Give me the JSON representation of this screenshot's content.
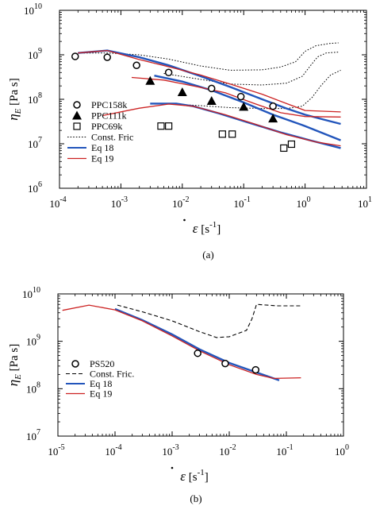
{
  "chart_data": [
    {
      "type": "line",
      "panel_label": "(a)",
      "xscale": "log",
      "yscale": "log",
      "xlim": [
        0.0001,
        10
      ],
      "ylim": [
        1000000,
        10000000000
      ],
      "xticks": [
        0.0001,
        0.001,
        0.01,
        0.1,
        1,
        10
      ],
      "yticks": [
        1000000,
        10000000,
        100000000,
        1000000000,
        10000000000
      ],
      "x_tick_labels": [
        {
          "base": "10",
          "exp": "-4"
        },
        {
          "base": "10",
          "exp": "-3"
        },
        {
          "base": "10",
          "exp": "-2"
        },
        {
          "base": "10",
          "exp": "-1"
        },
        {
          "base": "10",
          "exp": "0"
        },
        {
          "base": "10",
          "exp": "1"
        }
      ],
      "y_tick_labels": [
        {
          "base": "10",
          "exp": "6"
        },
        {
          "base": "10",
          "exp": "7"
        },
        {
          "base": "10",
          "exp": "8"
        },
        {
          "base": "10",
          "exp": "9"
        },
        {
          "base": "10",
          "exp": "10"
        }
      ],
      "xlabel": {
        "symbol": "ε",
        "text": " [s",
        "exp": "-1",
        "tail": "]"
      },
      "ylabel": {
        "symbol": "η",
        "sub": "E",
        "text": " [Pa s]"
      },
      "legend_position": "bottom-left",
      "legend": [
        {
          "label": "PPC158k",
          "marker": "circle"
        },
        {
          "label": "PPC111k",
          "marker": "triangle"
        },
        {
          "label": "PPC69k",
          "marker": "square"
        },
        {
          "label": "Const. Fric",
          "line": "dotted"
        },
        {
          "label": "Eq 18",
          "line": "blue"
        },
        {
          "label": "Eq 19",
          "line": "red"
        }
      ],
      "colors": {
        "eq18": "#2255bb",
        "eq19": "#cc2222",
        "const": "#000000"
      },
      "scatter": [
        {
          "name": "PPC158k",
          "marker": "circle",
          "points": [
            [
              0.00018,
              920000000.0
            ],
            [
              0.0006,
              880000000.0
            ],
            [
              0.0018,
              580000000.0
            ],
            [
              0.006,
              400000000.0
            ],
            [
              0.03,
              175000000.0
            ],
            [
              0.09,
              115000000.0
            ],
            [
              0.3,
              70000000.0
            ]
          ]
        },
        {
          "name": "PPC111k",
          "marker": "triangle",
          "points": [
            [
              0.003,
              260000000.0
            ],
            [
              0.01,
              145000000.0
            ],
            [
              0.03,
              92000000.0
            ],
            [
              0.1,
              68000000.0
            ],
            [
              0.3,
              37000000.0
            ]
          ]
        },
        {
          "name": "PPC69k",
          "marker": "square",
          "points": [
            [
              0.0045,
              25000000.0
            ],
            [
              0.006,
              25000000.0
            ],
            [
              0.045,
              16500000.0
            ],
            [
              0.065,
              16500000.0
            ],
            [
              0.45,
              8000000.0
            ],
            [
              0.6,
              9800000.0
            ]
          ]
        }
      ],
      "lines": [
        {
          "name": "PPC158k",
          "style": "dotted",
          "points": [
            [
              0.0002,
              1100000000.0
            ],
            [
              0.0006,
              1100000000.0
            ],
            [
              0.002,
              1000000000.0
            ],
            [
              0.006,
              800000000.0
            ],
            [
              0.02,
              560000000.0
            ],
            [
              0.06,
              450000000.0
            ],
            [
              0.2,
              460000000.0
            ],
            [
              0.4,
              530000000.0
            ],
            [
              0.7,
              700000000.0
            ],
            [
              1.0,
              1200000000.0
            ],
            [
              1.5,
              1600000000.0
            ],
            [
              2.5,
              1800000000.0
            ],
            [
              3.5,
              1850000000.0
            ]
          ]
        },
        {
          "name": "PPC111k",
          "style": "dotted",
          "points": [
            [
              0.005,
              380000000.0
            ],
            [
              0.02,
              280000000.0
            ],
            [
              0.06,
              220000000.0
            ],
            [
              0.2,
              210000000.0
            ],
            [
              0.5,
              230000000.0
            ],
            [
              0.9,
              330000000.0
            ],
            [
              1.2,
              550000000.0
            ],
            [
              1.6,
              900000000.0
            ],
            [
              2.2,
              1100000000.0
            ],
            [
              3.5,
              1150000000.0
            ]
          ]
        },
        {
          "name": "PPC69k",
          "style": "dotted",
          "points": [
            [
              0.005,
              80000000.0
            ],
            [
              0.02,
              72000000.0
            ],
            [
              0.06,
              65000000.0
            ],
            [
              0.2,
              62000000.0
            ],
            [
              0.5,
              62000000.0
            ],
            [
              0.9,
              70000000.0
            ],
            [
              1.3,
              110000000.0
            ],
            [
              1.8,
              200000000.0
            ],
            [
              2.6,
              350000000.0
            ],
            [
              3.8,
              450000000.0
            ]
          ]
        },
        {
          "name": "Eq 18 PPC158k",
          "style": "blue",
          "points": [
            [
              0.0002,
              1100000000.0
            ],
            [
              0.0006,
              1250000000.0
            ],
            [
              0.002,
              880000000.0
            ],
            [
              0.006,
              580000000.0
            ],
            [
              0.02,
              330000000.0
            ],
            [
              0.06,
              190000000.0
            ],
            [
              0.2,
              100000000.0
            ],
            [
              0.5,
              62000000.0
            ],
            [
              1.0,
              45000000.0
            ],
            [
              2.0,
              35000000.0
            ],
            [
              3.8,
              28000000.0
            ]
          ]
        },
        {
          "name": "Eq 19 PPC158k",
          "style": "red",
          "points": [
            [
              0.0002,
              1100000000.0
            ],
            [
              0.0006,
              1250000000.0
            ],
            [
              0.002,
              780000000.0
            ],
            [
              0.006,
              540000000.0
            ],
            [
              0.02,
              350000000.0
            ],
            [
              0.06,
              220000000.0
            ],
            [
              0.2,
              130000000.0
            ],
            [
              0.5,
              80000000.0
            ],
            [
              1.0,
              56000000.0
            ],
            [
              3.8,
              52000000.0
            ]
          ]
        },
        {
          "name": "Eq 18 PPC111k",
          "style": "blue",
          "points": [
            [
              0.0035,
              340000000.0
            ],
            [
              0.01,
              250000000.0
            ],
            [
              0.03,
              160000000.0
            ],
            [
              0.1,
              85000000.0
            ],
            [
              0.3,
              45000000.0
            ],
            [
              1.0,
              25000000.0
            ],
            [
              3.8,
              12000000.0
            ]
          ]
        },
        {
          "name": "Eq 19 PPC111k",
          "style": "red",
          "points": [
            [
              0.0015,
              310000000.0
            ],
            [
              0.005,
              270000000.0
            ],
            [
              0.015,
              200000000.0
            ],
            [
              0.05,
              140000000.0
            ],
            [
              0.15,
              80000000.0
            ],
            [
              0.4,
              50000000.0
            ],
            [
              1.0,
              41000000.0
            ],
            [
              3.8,
              40000000.0
            ]
          ]
        },
        {
          "name": "Eq 18 PPC69k",
          "style": "blue",
          "points": [
            [
              0.003,
              80000000.0
            ],
            [
              0.008,
              80000000.0
            ],
            [
              0.015,
              70000000.0
            ],
            [
              0.04,
              48000000.0
            ],
            [
              0.12,
              30000000.0
            ],
            [
              0.4,
              18000000.0
            ],
            [
              1.2,
              12000000.0
            ],
            [
              3.8,
              8000000.0
            ]
          ]
        },
        {
          "name": "Eq 19 PPC69k",
          "style": "red",
          "points": [
            [
              0.0005,
              43000000.0
            ],
            [
              0.002,
              63000000.0
            ],
            [
              0.006,
              78000000.0
            ],
            [
              0.015,
              70000000.0
            ],
            [
              0.05,
              45000000.0
            ],
            [
              0.15,
              28000000.0
            ],
            [
              0.5,
              16000000.0
            ],
            [
              1.5,
              11000000.0
            ],
            [
              3.8,
              9000000.0
            ]
          ]
        }
      ]
    },
    {
      "type": "line",
      "panel_label": "(b)",
      "xscale": "log",
      "yscale": "log",
      "xlim": [
        1e-05,
        1
      ],
      "ylim": [
        10000000,
        10000000000
      ],
      "xticks": [
        1e-05,
        0.0001,
        0.001,
        0.01,
        0.1,
        1
      ],
      "yticks": [
        10000000,
        100000000,
        1000000000,
        10000000000
      ],
      "x_tick_labels": [
        {
          "base": "10",
          "exp": "-5"
        },
        {
          "base": "10",
          "exp": "-4"
        },
        {
          "base": "10",
          "exp": "-3"
        },
        {
          "base": "10",
          "exp": "-2"
        },
        {
          "base": "10",
          "exp": "-1"
        },
        {
          "base": "10",
          "exp": "0"
        }
      ],
      "y_tick_labels": [
        {
          "base": "10",
          "exp": "7"
        },
        {
          "base": "10",
          "exp": "8"
        },
        {
          "base": "10",
          "exp": "9"
        },
        {
          "base": "10",
          "exp": "10"
        }
      ],
      "xlabel": {
        "symbol": "ε",
        "text": " [s",
        "exp": "-1",
        "tail": "]"
      },
      "ylabel": {
        "symbol": "η",
        "sub": "E",
        "text": " [Pa s]"
      },
      "legend_position": "bottom-left",
      "legend": [
        {
          "label": "PS520",
          "marker": "circle"
        },
        {
          "label": "Const. Fric.",
          "line": "dashed"
        },
        {
          "label": "Eq 18",
          "line": "blue"
        },
        {
          "label": "Eq 19",
          "line": "red"
        }
      ],
      "colors": {
        "eq18": "#2255bb",
        "eq19": "#cc2222",
        "const": "#000000"
      },
      "scatter": [
        {
          "name": "PS520",
          "marker": "circle",
          "points": [
            [
              0.0028,
              560000000.0
            ],
            [
              0.0085,
              340000000.0
            ],
            [
              0.029,
              250000000.0
            ]
          ]
        }
      ],
      "lines": [
        {
          "name": "Const. Fric.",
          "style": "dashed",
          "points": [
            [
              0.00011,
              5800000000.0
            ],
            [
              0.0003,
              4200000000.0
            ],
            [
              0.001,
              2700000000.0
            ],
            [
              0.003,
              1600000000.0
            ],
            [
              0.006,
              1200000000.0
            ],
            [
              0.01,
              1250000000.0
            ],
            [
              0.02,
              1700000000.0
            ],
            [
              0.025,
              3000000000.0
            ],
            [
              0.03,
              6000000000.0
            ],
            [
              0.07,
              5600000000.0
            ],
            [
              0.18,
              5600000000.0
            ]
          ]
        },
        {
          "name": "Eq 18",
          "style": "blue",
          "points": [
            [
              0.0001,
              4800000000.0
            ],
            [
              0.0003,
              2800000000.0
            ],
            [
              0.001,
              1400000000.0
            ],
            [
              0.003,
              680000000.0
            ],
            [
              0.01,
              350000000.0
            ],
            [
              0.03,
              220000000.0
            ],
            [
              0.075,
              150000000.0
            ]
          ]
        },
        {
          "name": "Eq 19",
          "style": "red",
          "points": [
            [
              1.2e-05,
              4500000000.0
            ],
            [
              3.5e-05,
              5800000000.0
            ],
            [
              0.0001,
              4600000000.0
            ],
            [
              0.0003,
              2700000000.0
            ],
            [
              0.001,
              1300000000.0
            ],
            [
              0.003,
              630000000.0
            ],
            [
              0.01,
              320000000.0
            ],
            [
              0.03,
              200000000.0
            ],
            [
              0.06,
              165000000.0
            ],
            [
              0.18,
              170000000.0
            ]
          ]
        }
      ]
    }
  ]
}
